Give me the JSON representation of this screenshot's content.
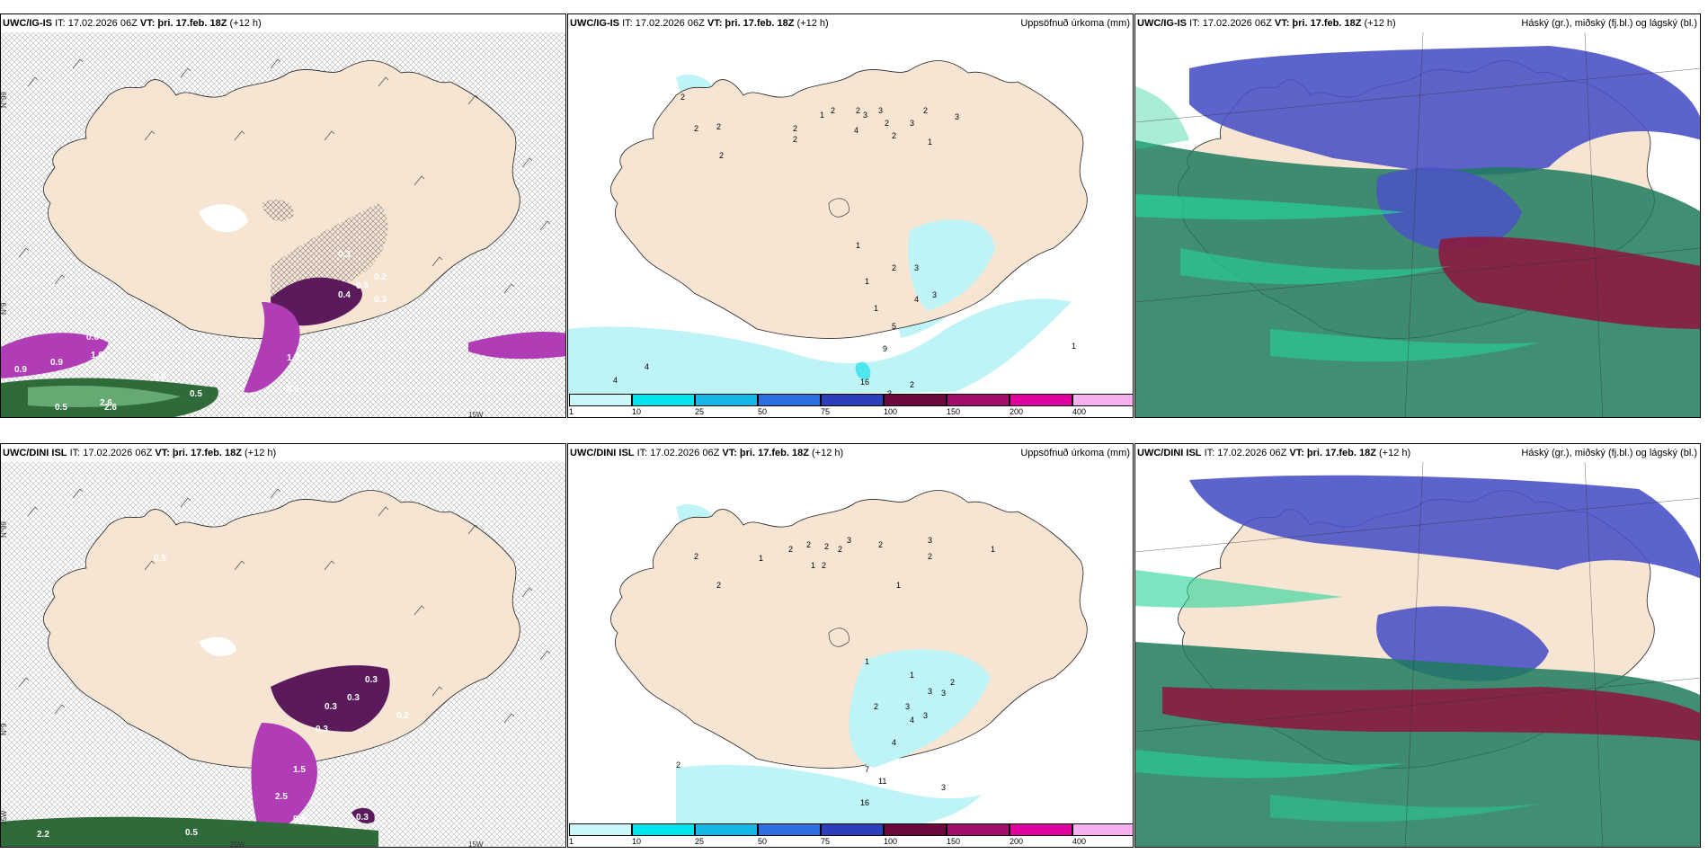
{
  "panels": {
    "wind_ig": {
      "title_model": "UWC/IG-IS",
      "title_it": "IT: 17.02.2026 06Z",
      "title_vt": "VT: þri. 17.feb. 18Z",
      "title_lead": "(+12 h)",
      "labels": [
        "0.6",
        "1.6",
        "0.9",
        "0.9",
        "0.5",
        "2.6",
        "0.5",
        "0.3",
        "0.4",
        "0.3",
        "0.3",
        "0.2",
        "1.2",
        "0.5",
        "0.3",
        "2.6",
        "2.0"
      ],
      "lat_label": "N°99",
      "lat_label2": "N°9",
      "lon_label": "15W"
    },
    "precip_ig": {
      "title_model": "UWC/IG-IS",
      "title_it": "IT: 17.02.2026 06Z",
      "title_vt": "VT: þri. 17.feb. 18Z",
      "title_lead": "(+12 h)",
      "right_title": "Uppsöfnuð úrkoma (mm)",
      "numbers": [
        "2",
        "2",
        "2",
        "2",
        "2",
        "2",
        "1",
        "2",
        "4",
        "3",
        "2",
        "3",
        "2",
        "3",
        "1",
        "2",
        "2",
        "3",
        "1",
        "1",
        "2",
        "3",
        "1",
        "4",
        "3",
        "5",
        "9",
        "16",
        "2",
        "3",
        "4",
        "4",
        "1"
      ]
    },
    "cloud_ig": {
      "title_model": "UWC/IG-IS",
      "title_it": "IT: 17.02.2026 06Z",
      "title_vt": "VT: þri. 17.feb. 18Z",
      "title_lead": "(+12 h)",
      "right_title": "Háský (gr.), miðský (fj.bl.) og lágský (bl.)"
    },
    "wind_dini": {
      "title_model": "UWC/DINI ISL",
      "title_it": "IT: 17.02.2026 06Z",
      "title_vt": "VT: þri. 17.feb. 18Z",
      "title_lead": "(+12 h)",
      "labels": [
        "0.5",
        "0.3",
        "0.3",
        "0.3",
        "0.3",
        "0.2",
        "1.5",
        "2.5",
        "0.5",
        "0.3",
        "0.5",
        "2.2"
      ],
      "lat_label": "N°99",
      "lat_label2": "N°9",
      "lon_label": "20W",
      "lon_label2": "15W",
      "lon_label3": "25W"
    },
    "precip_dini": {
      "title_model": "UWC/DINI ISL",
      "title_it": "IT: 17.02.2026 06Z",
      "title_vt": "VT: þri. 17.feb. 18Z",
      "title_lead": "(+12 h)",
      "right_title": "Uppsöfnuð úrkoma (mm)",
      "numbers": [
        "2",
        "2",
        "1",
        "2",
        "2",
        "2",
        "1",
        "2",
        "2",
        "3",
        "2",
        "3",
        "1",
        "1",
        "1",
        "3",
        "3",
        "2",
        "2",
        "3",
        "4",
        "3",
        "4",
        "7",
        "11",
        "16",
        "3",
        "2",
        "2",
        "1"
      ]
    },
    "cloud_dini": {
      "title_model": "UWC/DINI ISL",
      "title_it": "IT: 17.02.2026 06Z",
      "title_vt": "VT: þri. 17.feb. 18Z",
      "title_lead": "(+12 h)",
      "right_title": "Háský (gr.), miðský (fj.bl.) og lágský (bl.)"
    }
  },
  "precip_legend": {
    "labels": [
      "1",
      "10",
      "25",
      "50",
      "75",
      "100",
      "150",
      "200",
      "400"
    ],
    "colors": [
      "#c8f8fa",
      "#00e5ec",
      "#13b8e6",
      "#2d6fe0",
      "#2b3fbb",
      "#6a0a3c",
      "#9e0e6a",
      "#e000a0",
      "#f4b0ef"
    ]
  },
  "colors": {
    "land": "#f7e5d3",
    "coast": "#222222",
    "precip_light": "#bff4f7",
    "precip_mid": "#4fe6ee",
    "wind_purple": "#b03cb6",
    "wind_dark": "#5b1a5c",
    "wind_green": "#2f6b3a",
    "cloud_high": "#1e7b5d",
    "cloud_mid": "#4b52c6",
    "cloud_low": "#8a1b3e",
    "cloud_green": "#27d29a"
  }
}
